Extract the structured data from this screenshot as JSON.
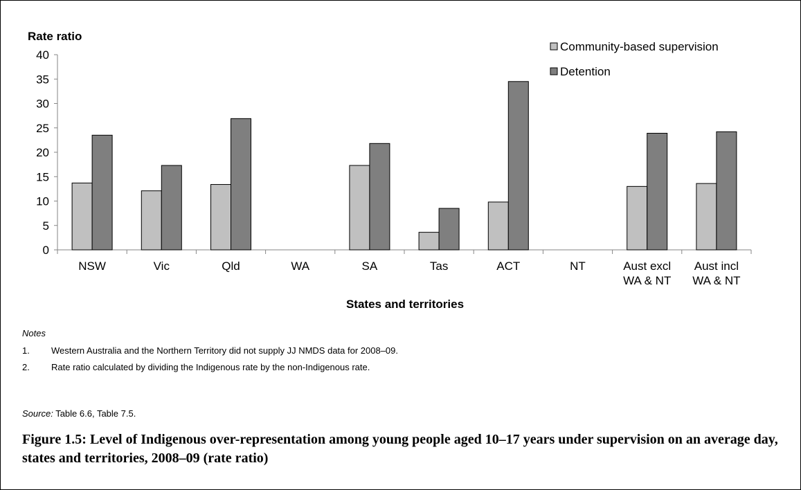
{
  "chart_data": {
    "type": "bar",
    "ylabel": "Rate ratio",
    "xlabel": "States and territories",
    "ylim": [
      0,
      40
    ],
    "yticks": [
      "0",
      "5",
      "10",
      "15",
      "20",
      "25",
      "30",
      "35",
      "40"
    ],
    "categories": [
      [
        "NSW"
      ],
      [
        "Vic"
      ],
      [
        "Qld"
      ],
      [
        "WA"
      ],
      [
        "SA"
      ],
      [
        "Tas"
      ],
      [
        "ACT"
      ],
      [
        "NT"
      ],
      [
        "Aust excl",
        "WA & NT"
      ],
      [
        "Aust incl",
        "WA & NT"
      ]
    ],
    "series": [
      {
        "name": "Community-based supervision",
        "color": "#c0c0c0",
        "values": [
          13.7,
          12.1,
          13.4,
          null,
          17.3,
          3.6,
          9.8,
          null,
          13.0,
          13.6
        ]
      },
      {
        "name": "Detention",
        "color": "#7f7f7f",
        "values": [
          23.5,
          17.3,
          26.9,
          null,
          21.8,
          8.5,
          34.5,
          null,
          23.9,
          24.2
        ]
      }
    ],
    "legend_position": "top-right",
    "grid": false
  },
  "notes": {
    "heading": "Notes",
    "items": [
      {
        "num": "1.",
        "text": "Western Australia and the Northern Territory did not supply JJ NMDS data for 2008–09."
      },
      {
        "num": "2.",
        "text": "Rate ratio calculated by dividing the Indigenous rate by the non-Indigenous rate."
      }
    ]
  },
  "source": {
    "label": "Source:",
    "text": " Table 6.6, Table 7.5."
  },
  "caption": "Figure 1.5: Level of Indigenous over-representation among young people aged 10–17 years under supervision on an average day, states and territories, 2008–09 (rate ratio)"
}
